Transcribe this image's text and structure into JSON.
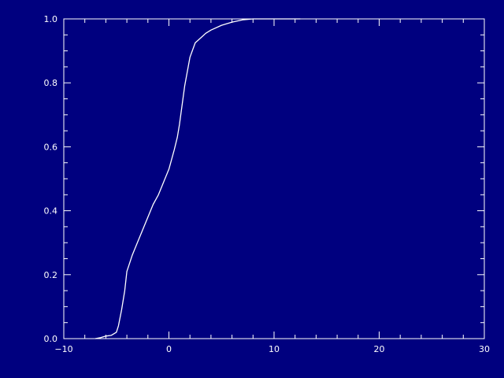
{
  "chart_data": {
    "type": "line",
    "title": "",
    "xlabel": "",
    "ylabel": "",
    "xlim": [
      -10,
      30
    ],
    "ylim": [
      0,
      1
    ],
    "grid": false,
    "background_color": "#00007f",
    "foreground_color": "#ffffff",
    "x_ticks": [
      -10,
      0,
      10,
      20,
      30
    ],
    "x_tick_labels": [
      "−10",
      "0",
      "10",
      "20",
      "30"
    ],
    "y_ticks": [
      0,
      0.2,
      0.4,
      0.6,
      0.8,
      1.0
    ],
    "y_tick_labels": [
      "0.0",
      "0.2",
      "0.4",
      "0.6",
      "0.8",
      "1.0"
    ],
    "series": [
      {
        "color": "#ffffff",
        "x": [
          -7.0,
          -6.5,
          -6.0,
          -5.5,
          -5.0,
          -4.8,
          -4.5,
          -4.2,
          -4.0,
          -3.8,
          -3.5,
          -3.0,
          -2.5,
          -2.0,
          -1.5,
          -1.0,
          -0.5,
          0.0,
          0.5,
          0.8,
          1.0,
          1.5,
          2.0,
          2.5,
          3.0,
          3.5,
          4.0,
          5.0,
          6.0,
          7.0,
          8.0,
          9.0,
          10.0,
          11.0,
          12.5
        ],
        "y": [
          0.0,
          0.003,
          0.008,
          0.01,
          0.02,
          0.04,
          0.09,
          0.15,
          0.21,
          0.23,
          0.26,
          0.3,
          0.34,
          0.38,
          0.42,
          0.45,
          0.49,
          0.53,
          0.59,
          0.63,
          0.67,
          0.79,
          0.88,
          0.925,
          0.94,
          0.955,
          0.965,
          0.98,
          0.99,
          0.997,
          1.0,
          1.0,
          1.0,
          1.0,
          1.0
        ]
      }
    ]
  }
}
